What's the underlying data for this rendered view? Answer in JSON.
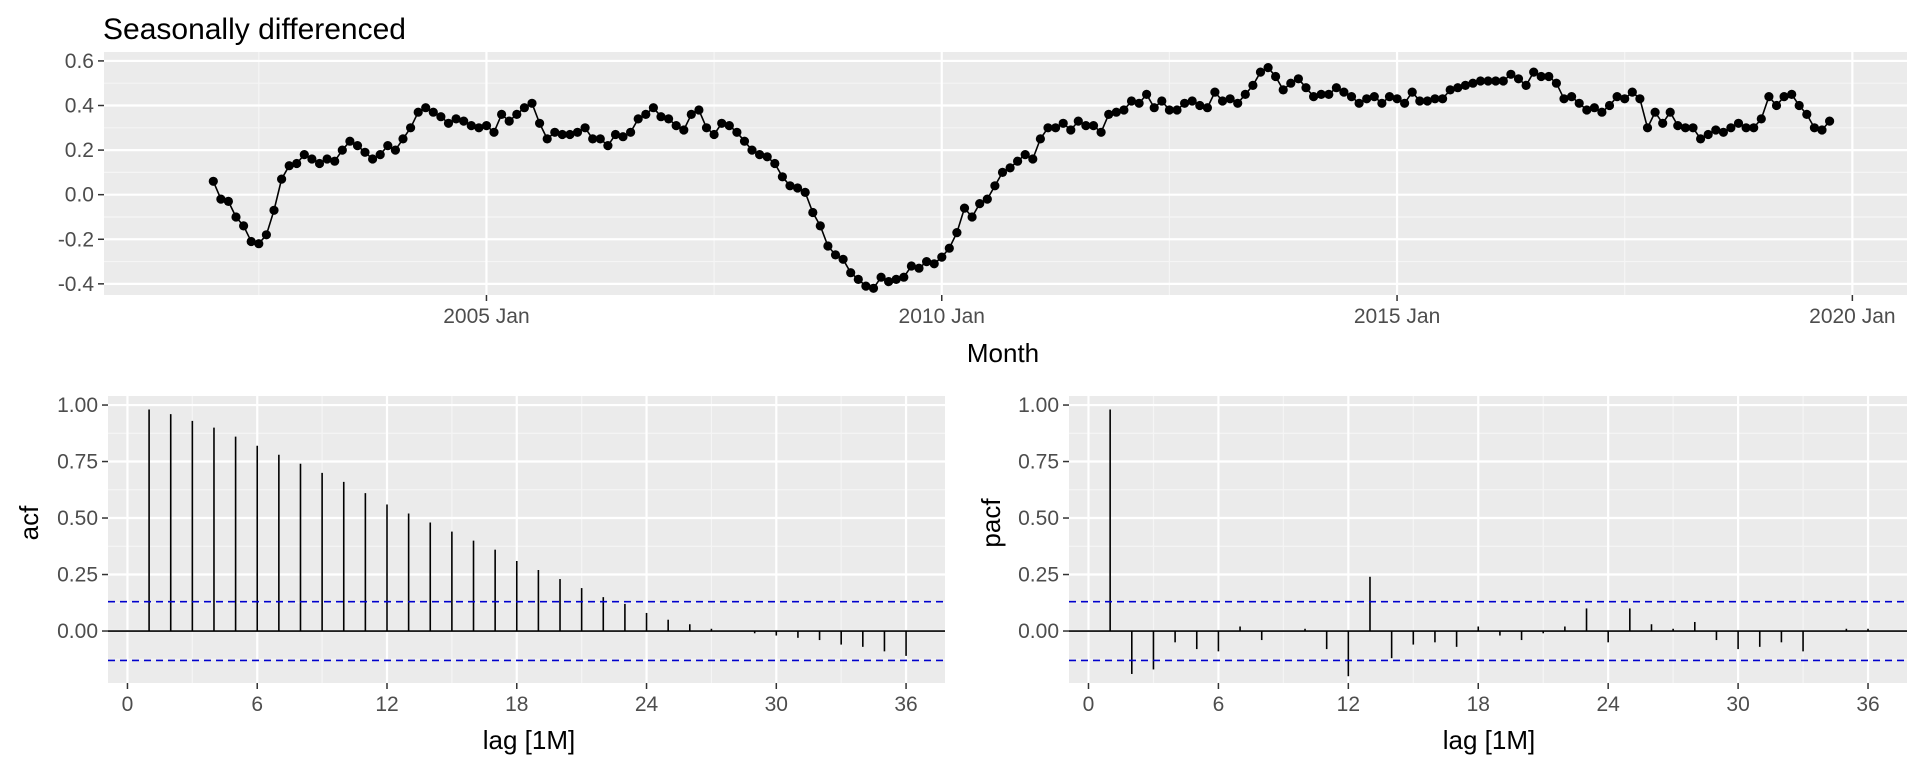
{
  "title": "Seasonally differenced",
  "chart_data": [
    {
      "type": "line",
      "title": "Seasonally differenced",
      "xlabel": "Month",
      "ylabel": "",
      "x_ticks": [
        {
          "value": 2005,
          "label": "2005 Jan"
        },
        {
          "value": 2010,
          "label": "2010 Jan"
        },
        {
          "value": 2015,
          "label": "2015 Jan"
        },
        {
          "value": 2020,
          "label": "2020 Jan"
        }
      ],
      "y_ticks": [
        {
          "value": 0.6,
          "label": "0.6"
        },
        {
          "value": 0.4,
          "label": "0.4"
        },
        {
          "value": 0.2,
          "label": "0.2"
        },
        {
          "value": 0.0,
          "label": "0.0"
        },
        {
          "value": -0.2,
          "label": "-0.2"
        },
        {
          "value": -0.4,
          "label": "-0.4"
        }
      ],
      "xlim": [
        2000.8,
        2020.6
      ],
      "ylim": [
        -0.45,
        0.64
      ],
      "grid": true,
      "x_start": "2002 Jan",
      "x_step_months": 1,
      "values": [
        0.06,
        -0.02,
        -0.03,
        -0.1,
        -0.14,
        -0.21,
        -0.22,
        -0.18,
        -0.07,
        0.07,
        0.13,
        0.14,
        0.18,
        0.16,
        0.14,
        0.16,
        0.15,
        0.2,
        0.24,
        0.22,
        0.19,
        0.16,
        0.18,
        0.22,
        0.2,
        0.25,
        0.3,
        0.37,
        0.39,
        0.37,
        0.35,
        0.32,
        0.34,
        0.33,
        0.31,
        0.3,
        0.31,
        0.28,
        0.36,
        0.33,
        0.36,
        0.39,
        0.41,
        0.32,
        0.25,
        0.28,
        0.27,
        0.27,
        0.28,
        0.3,
        0.25,
        0.25,
        0.22,
        0.27,
        0.26,
        0.28,
        0.34,
        0.36,
        0.39,
        0.35,
        0.34,
        0.31,
        0.29,
        0.36,
        0.38,
        0.3,
        0.27,
        0.32,
        0.31,
        0.28,
        0.24,
        0.2,
        0.18,
        0.17,
        0.14,
        0.08,
        0.04,
        0.03,
        0.01,
        -0.08,
        -0.14,
        -0.23,
        -0.27,
        -0.29,
        -0.35,
        -0.38,
        -0.41,
        -0.42,
        -0.37,
        -0.39,
        -0.38,
        -0.37,
        -0.32,
        -0.33,
        -0.3,
        -0.31,
        -0.28,
        -0.24,
        -0.17,
        -0.06,
        -0.1,
        -0.04,
        -0.02,
        0.04,
        0.1,
        0.12,
        0.15,
        0.18,
        0.16,
        0.25,
        0.3,
        0.3,
        0.32,
        0.29,
        0.33,
        0.31,
        0.31,
        0.28,
        0.36,
        0.37,
        0.38,
        0.42,
        0.41,
        0.45,
        0.39,
        0.42,
        0.38,
        0.38,
        0.41,
        0.42,
        0.4,
        0.39,
        0.46,
        0.42,
        0.43,
        0.41,
        0.45,
        0.49,
        0.55,
        0.57,
        0.53,
        0.47,
        0.5,
        0.52,
        0.48,
        0.44,
        0.45,
        0.45,
        0.48,
        0.46,
        0.44,
        0.41,
        0.43,
        0.44,
        0.41,
        0.44,
        0.43,
        0.41,
        0.46,
        0.42,
        0.42,
        0.43,
        0.43,
        0.47,
        0.48,
        0.49,
        0.5,
        0.51,
        0.51,
        0.51,
        0.51,
        0.54,
        0.52,
        0.49,
        0.55,
        0.53,
        0.53,
        0.5,
        0.43,
        0.44,
        0.41,
        0.38,
        0.39,
        0.37,
        0.4,
        0.44,
        0.43,
        0.46,
        0.43,
        0.3,
        0.37,
        0.32,
        0.37,
        0.31,
        0.3,
        0.3,
        0.25,
        0.27,
        0.29,
        0.28,
        0.3,
        0.32,
        0.3,
        0.3,
        0.34,
        0.44,
        0.4,
        0.44,
        0.45,
        0.4,
        0.36,
        0.3,
        0.29,
        0.33
      ]
    },
    {
      "type": "bar",
      "xlabel": "lag [1M]",
      "ylabel": "acf",
      "x_ticks": [
        0,
        6,
        12,
        18,
        24,
        30,
        36
      ],
      "y_ticks": [
        {
          "value": 1.0,
          "label": "1.00"
        },
        {
          "value": 0.75,
          "label": "0.75"
        },
        {
          "value": 0.5,
          "label": "0.50"
        },
        {
          "value": 0.25,
          "label": "0.25"
        },
        {
          "value": 0.0,
          "label": "0.00"
        }
      ],
      "xlim": [
        -0.9,
        37.8
      ],
      "ylim": [
        -0.23,
        1.04
      ],
      "confidence_band": 0.13,
      "grid": true,
      "lags": [
        1,
        2,
        3,
        4,
        5,
        6,
        7,
        8,
        9,
        10,
        11,
        12,
        13,
        14,
        15,
        16,
        17,
        18,
        19,
        20,
        21,
        22,
        23,
        24,
        25,
        26,
        27,
        28,
        29,
        30,
        31,
        32,
        33,
        34,
        35,
        36
      ],
      "values": [
        0.98,
        0.96,
        0.93,
        0.9,
        0.86,
        0.82,
        0.78,
        0.74,
        0.7,
        0.66,
        0.61,
        0.56,
        0.52,
        0.48,
        0.44,
        0.4,
        0.36,
        0.31,
        0.27,
        0.23,
        0.19,
        0.15,
        0.12,
        0.08,
        0.05,
        0.03,
        0.01,
        0.0,
        -0.01,
        -0.02,
        -0.03,
        -0.04,
        -0.06,
        -0.07,
        -0.09,
        -0.11
      ]
    },
    {
      "type": "bar",
      "xlabel": "lag [1M]",
      "ylabel": "pacf",
      "x_ticks": [
        0,
        6,
        12,
        18,
        24,
        30,
        36
      ],
      "y_ticks": [
        {
          "value": 1.0,
          "label": "1.00"
        },
        {
          "value": 0.75,
          "label": "0.75"
        },
        {
          "value": 0.5,
          "label": "0.50"
        },
        {
          "value": 0.25,
          "label": "0.25"
        },
        {
          "value": 0.0,
          "label": "0.00"
        }
      ],
      "xlim": [
        -0.9,
        37.8
      ],
      "ylim": [
        -0.23,
        1.04
      ],
      "confidence_band": 0.13,
      "grid": true,
      "lags": [
        1,
        2,
        3,
        4,
        5,
        6,
        7,
        8,
        9,
        10,
        11,
        12,
        13,
        14,
        15,
        16,
        17,
        18,
        19,
        20,
        21,
        22,
        23,
        24,
        25,
        26,
        27,
        28,
        29,
        30,
        31,
        32,
        33,
        34,
        35,
        36
      ],
      "values": [
        0.98,
        -0.19,
        -0.17,
        -0.05,
        -0.08,
        -0.09,
        0.02,
        -0.04,
        0.0,
        0.01,
        -0.08,
        -0.2,
        0.24,
        -0.12,
        -0.06,
        -0.05,
        -0.07,
        0.02,
        -0.02,
        -0.04,
        -0.01,
        0.02,
        0.1,
        -0.05,
        0.1,
        0.03,
        0.01,
        0.04,
        -0.04,
        -0.08,
        -0.07,
        -0.05,
        -0.09,
        0.0,
        0.01,
        0.01
      ]
    }
  ],
  "colors": {
    "panel_bg": "#ebebeb",
    "grid_major": "#ffffff",
    "grid_minor": "#f5f5f5",
    "series": "#000000",
    "band": "#0000cc",
    "tick_text": "#4d4d4d",
    "axis_text": "#000000"
  }
}
